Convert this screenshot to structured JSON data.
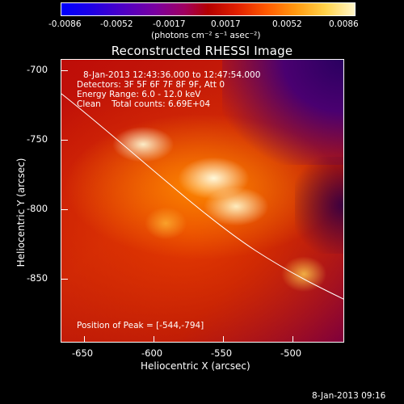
{
  "colorbar": {
    "ticks": [
      "-0.0086",
      "-0.0052",
      "-0.0017",
      "0.0017",
      "0.0052",
      "0.0086"
    ],
    "units": "(photons cm⁻² s⁻¹ asec⁻²)"
  },
  "title": "Reconstructed RHESSI Image",
  "annotation": {
    "time": "8-Jan-2013 12:43:36.000 to 12:47:54.000",
    "detectors": "Detectors: 3F 5F 6F 7F 8F 9F, Att 0",
    "energy": "Energy Range: 6.0 - 12.0 keV",
    "clean": "Clean    Total counts: 6.69E+04",
    "peak": "Position of Peak = [-544,-794]"
  },
  "axes": {
    "ylabel": "Heliocentric  Y (arcsec)",
    "xlabel": "Heliocentric X (arcsec)",
    "yticks": [
      "-700",
      "-750",
      "-800",
      "-850"
    ],
    "xticks": [
      "-650",
      "-600",
      "-550",
      "-500"
    ]
  },
  "footer": {
    "timestamp": "8-Jan-2013 09:16"
  }
}
